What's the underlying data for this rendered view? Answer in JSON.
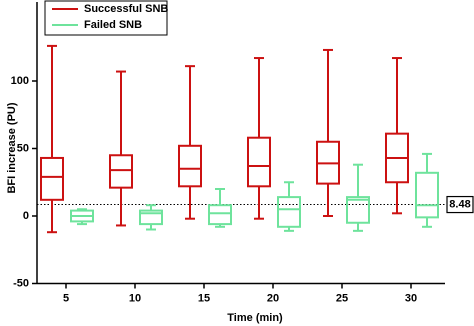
{
  "chart_data": {
    "type": "box",
    "x_label": "Time (min)",
    "y_label": "BFI increase (PU)",
    "categories": [
      "5",
      "10",
      "15",
      "20",
      "25",
      "30"
    ],
    "ylim": [
      -50,
      150
    ],
    "yticks": [
      -50,
      0,
      50,
      100
    ],
    "reference_line": 8.48,
    "series": [
      {
        "name": "Successful SNB",
        "color": "#cc1111",
        "min": [
          -12,
          -7,
          -2,
          -2,
          0,
          2
        ],
        "q1": [
          12,
          21,
          22,
          22,
          24,
          25
        ],
        "median": [
          29,
          34,
          35,
          37,
          39,
          43
        ],
        "q3": [
          43,
          45,
          52,
          58,
          55,
          61
        ],
        "max": [
          126,
          107,
          111,
          117,
          123,
          117
        ]
      },
      {
        "name": "Failed SNB",
        "color": "#6ee39c",
        "min": [
          -6,
          -10,
          -8,
          -11,
          -11,
          -8
        ],
        "q1": [
          -4,
          -6,
          -6,
          -8,
          -5,
          -1
        ],
        "median": [
          0,
          2,
          2,
          5,
          12,
          8
        ],
        "q3": [
          4,
          4,
          8,
          14,
          14,
          32
        ],
        "max": [
          5,
          8,
          20,
          25,
          38,
          46
        ]
      }
    ]
  }
}
